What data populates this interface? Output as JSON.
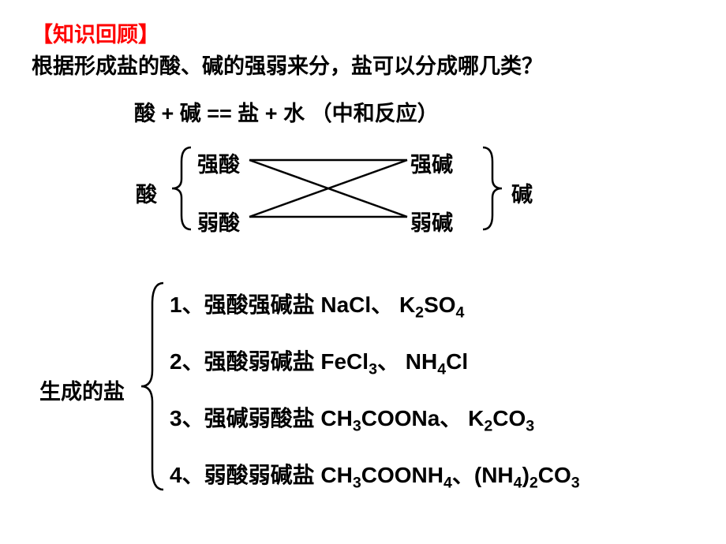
{
  "title": {
    "text": "【知识回顾】",
    "color": "#ff0000"
  },
  "question": "根据形成盐的酸、碱的强弱来分，盐可以分成哪几类？",
  "equation": "酸 + 碱 == 盐 + 水 （中和反应）",
  "cross": {
    "left_label": "酸",
    "right_label": "碱",
    "top_left": "强酸",
    "bottom_left": "弱酸",
    "top_right": "强碱",
    "bottom_right": "弱碱",
    "line_color": "#000000",
    "line_width": 2.5,
    "bracket_color": "#000000"
  },
  "salts": {
    "label": "生成的盐",
    "bracket_color": "#000000",
    "rows": [
      {
        "num": "1、",
        "name": "强酸强碱盐",
        "examples_html": "NaCl、 K<sub>2</sub>SO<sub>4</sub>"
      },
      {
        "num": "2、",
        "name": "强酸弱碱盐",
        "examples_html": "FeCl<sub>3</sub>、 NH<sub>4</sub>Cl"
      },
      {
        "num": "3、",
        "name": "强碱弱酸盐",
        "examples_html": "CH<sub>3</sub>COONa、 K<sub>2</sub>CO<sub>3</sub>"
      },
      {
        "num": "4、",
        "name": "弱酸弱碱盐",
        "examples_html": "CH<sub>3</sub>COONH<sub>4</sub>、(NH<sub>4</sub>)<sub>2</sub>CO<sub>3</sub>"
      }
    ]
  },
  "style": {
    "background": "#ffffff",
    "text_color": "#000000",
    "font_size_main": 27,
    "font_size_salt": 28,
    "font_weight": "bold"
  }
}
